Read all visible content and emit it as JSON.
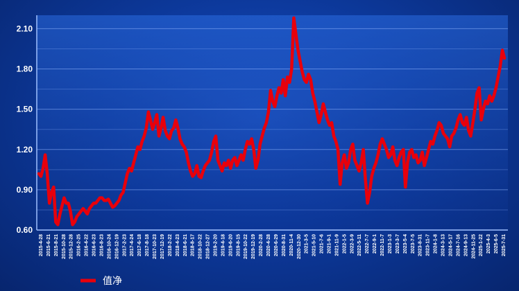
{
  "chart_data": {
    "type": "line",
    "title": "",
    "xlabel": "",
    "ylabel": "",
    "ylim": [
      0.6,
      2.2
    ],
    "grid": true,
    "legend_position": "bottom-left",
    "y_ticks": [
      "0.60",
      "0.90",
      "1.20",
      "1.50",
      "1.80",
      "2.10"
    ],
    "x_ticks": [
      "2015-4-28",
      "2015-6-21",
      "2015-8-21",
      "2015-10-28",
      "2015-12-28",
      "2016-2-25",
      "2016-4-22",
      "2016-6-23",
      "2016-8-23",
      "2016-10-24",
      "2016-12-19",
      "2017-2-23",
      "2017-4-24",
      "2017-6-18",
      "2017-8-18",
      "2017-10-23",
      "2017-12-19",
      "2018-2-22",
      "2018-4-23",
      "2018-6-21",
      "2018-8-17",
      "2018-10-22",
      "2018-12-27",
      "2019-2-20",
      "2019-4-18",
      "2019-6-20",
      "2019-8-15",
      "2019-10-22",
      "2019-12-19",
      "2020-2-28",
      "2020-4-28",
      "2020-6-29",
      "2020-8-31",
      "2020-11-4",
      "2020-12-30",
      "2021-3-5",
      "2021-5-10",
      "2021-7-6",
      "2021-9-1",
      "2021-11-9",
      "2022-1-5",
      "2022-3-9",
      "2022-5-11",
      "2022-7-7",
      "2022-9-1",
      "2022-11-7",
      "2023-1-3",
      "2023-3-7",
      "2023-5-4",
      "2023-7-5",
      "2023-8-31",
      "2023-11-7",
      "2024-1-8",
      "2024-3-13",
      "2024-5-17",
      "2024-7-16",
      "2024-9-13",
      "2024-11-25",
      "2025-1-22",
      "2025-4-3",
      "2025-6-5",
      "2025-7-31"
    ],
    "series": [
      {
        "name": "值净",
        "color": "#e8000b",
        "values": [
          1.02,
          1.0,
          1.06,
          1.16,
          1.02,
          0.8,
          0.88,
          0.92,
          0.66,
          0.64,
          0.72,
          0.78,
          0.84,
          0.8,
          0.8,
          0.74,
          0.64,
          0.66,
          0.7,
          0.72,
          0.74,
          0.76,
          0.74,
          0.72,
          0.76,
          0.78,
          0.8,
          0.8,
          0.82,
          0.84,
          0.84,
          0.82,
          0.82,
          0.83,
          0.8,
          0.77,
          0.78,
          0.8,
          0.82,
          0.86,
          0.88,
          0.95,
          1.02,
          1.06,
          1.04,
          1.1,
          1.16,
          1.22,
          1.2,
          1.26,
          1.3,
          1.36,
          1.48,
          1.42,
          1.35,
          1.4,
          1.46,
          1.3,
          1.36,
          1.44,
          1.34,
          1.3,
          1.28,
          1.34,
          1.36,
          1.42,
          1.36,
          1.28,
          1.24,
          1.22,
          1.18,
          1.1,
          1.04,
          1.0,
          1.02,
          1.08,
          1.0,
          0.99,
          1.04,
          1.08,
          1.1,
          1.12,
          1.18,
          1.26,
          1.3,
          1.12,
          1.08,
          1.04,
          1.1,
          1.08,
          1.12,
          1.06,
          1.12,
          1.14,
          1.08,
          1.12,
          1.16,
          1.12,
          1.2,
          1.26,
          1.24,
          1.28,
          1.2,
          1.06,
          1.12,
          1.24,
          1.3,
          1.36,
          1.4,
          1.48,
          1.64,
          1.56,
          1.52,
          1.6,
          1.66,
          1.62,
          1.72,
          1.6,
          1.74,
          1.7,
          1.8,
          2.18,
          2.06,
          1.94,
          1.86,
          1.78,
          1.72,
          1.7,
          1.76,
          1.72,
          1.62,
          1.56,
          1.48,
          1.4,
          1.46,
          1.54,
          1.48,
          1.42,
          1.38,
          1.4,
          1.3,
          1.26,
          1.2,
          0.94,
          1.1,
          1.16,
          1.06,
          1.1,
          1.2,
          1.24,
          1.12,
          1.08,
          1.04,
          1.1,
          1.2,
          0.98,
          0.8,
          0.88,
          1.0,
          1.06,
          1.1,
          1.16,
          1.24,
          1.28,
          1.24,
          1.2,
          1.14,
          1.16,
          1.22,
          1.12,
          1.08,
          1.14,
          1.18,
          1.2,
          0.92,
          1.1,
          1.18,
          1.2,
          1.14,
          1.16,
          1.1,
          1.12,
          1.18,
          1.08,
          1.14,
          1.2,
          1.26,
          1.24,
          1.3,
          1.34,
          1.4,
          1.38,
          1.32,
          1.3,
          1.28,
          1.22,
          1.3,
          1.32,
          1.36,
          1.42,
          1.46,
          1.4,
          1.38,
          1.44,
          1.34,
          1.3,
          1.4,
          1.5,
          1.62,
          1.66,
          1.42,
          1.5,
          1.56,
          1.54,
          1.6,
          1.56,
          1.6,
          1.66,
          1.74,
          1.82,
          1.94,
          1.88
        ]
      }
    ]
  }
}
